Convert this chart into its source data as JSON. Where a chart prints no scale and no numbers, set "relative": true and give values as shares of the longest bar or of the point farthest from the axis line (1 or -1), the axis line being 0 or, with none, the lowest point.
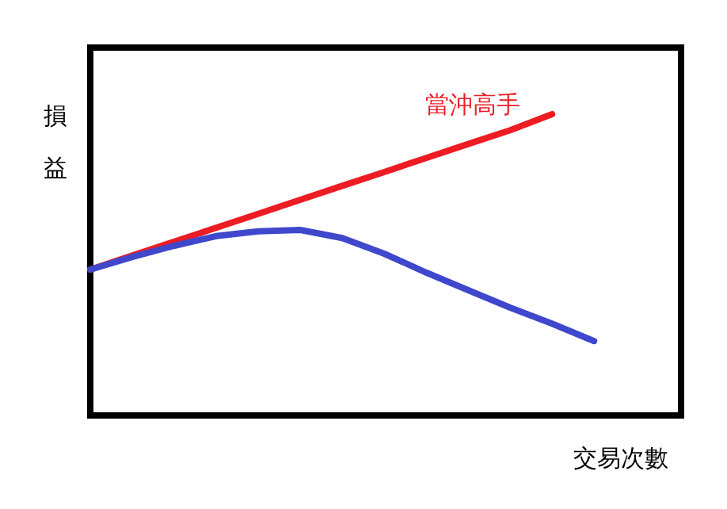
{
  "chart_data": {
    "type": "line",
    "relative": true,
    "xlabel": "交易次數",
    "ylabel": "損益",
    "legend": false,
    "grid": false,
    "marker": "none",
    "categories": [
      null,
      null,
      null,
      null,
      null,
      null,
      null,
      null,
      null,
      null,
      null,
      null,
      null
    ],
    "series": [
      {
        "name": "當沖高手",
        "color": "#ed1c24",
        "values": [
          0.484,
          0.531,
          0.577,
          0.623,
          0.669,
          0.716,
          0.762,
          0.808,
          0.855,
          0.901,
          0.947,
          1.0,
          null
        ]
      },
      {
        "color": "#3f48cc",
        "values": [
          0.484,
          0.526,
          0.563,
          0.595,
          0.611,
          0.616,
          0.589,
          0.537,
          0.474,
          0.416,
          0.358,
          0.305,
          0.247
        ]
      }
    ]
  }
}
